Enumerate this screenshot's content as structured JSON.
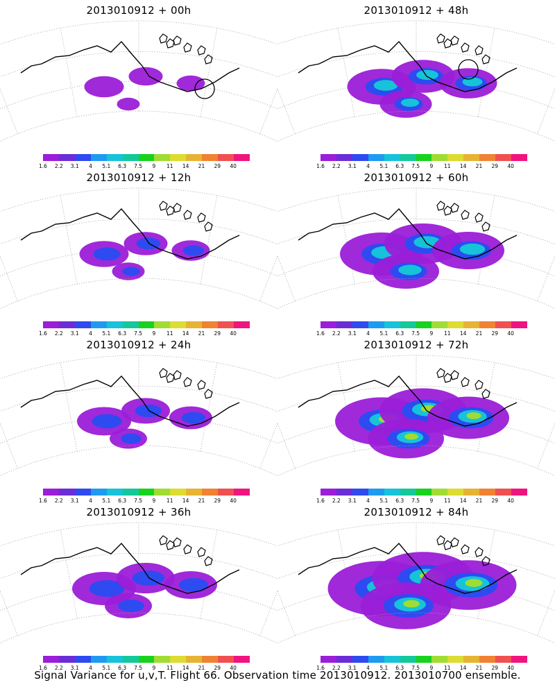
{
  "panels": [
    {
      "title": "2013010912 + 00h",
      "variance_level": 0.15,
      "circle_marker": true
    },
    {
      "title": "2013010912 + 48h",
      "variance_level": 0.45,
      "circle_marker": true
    },
    {
      "title": "2013010912 + 12h",
      "variance_level": 0.25,
      "circle_marker": false
    },
    {
      "title": "2013010912 + 60h",
      "variance_level": 0.6,
      "circle_marker": false
    },
    {
      "title": "2013010912 + 24h",
      "variance_level": 0.3,
      "circle_marker": false
    },
    {
      "title": "2013010912 + 72h",
      "variance_level": 0.7,
      "circle_marker": false
    },
    {
      "title": "2013010912 + 36h",
      "variance_level": 0.4,
      "circle_marker": false
    },
    {
      "title": "2013010912 + 84h",
      "variance_level": 0.85,
      "circle_marker": false
    }
  ],
  "colorbar": {
    "labels": [
      "1.6",
      "2.2",
      "3.1",
      "4",
      "5.1",
      "6.3",
      "7.5",
      "9",
      "11",
      "14",
      "21",
      "29",
      "40"
    ],
    "colors": [
      "#9b1ed8",
      "#6b2dd8",
      "#2d4bf0",
      "#1e9bf0",
      "#16c3d8",
      "#14c89a",
      "#18d21e",
      "#a0dc32",
      "#dcdc32",
      "#e6b432",
      "#f08232",
      "#f05050",
      "#f0147f"
    ]
  },
  "footer": "Signal Variance for u,v,T. Flight 66. Observation time 2013010912. 2013010700 ensemble."
}
